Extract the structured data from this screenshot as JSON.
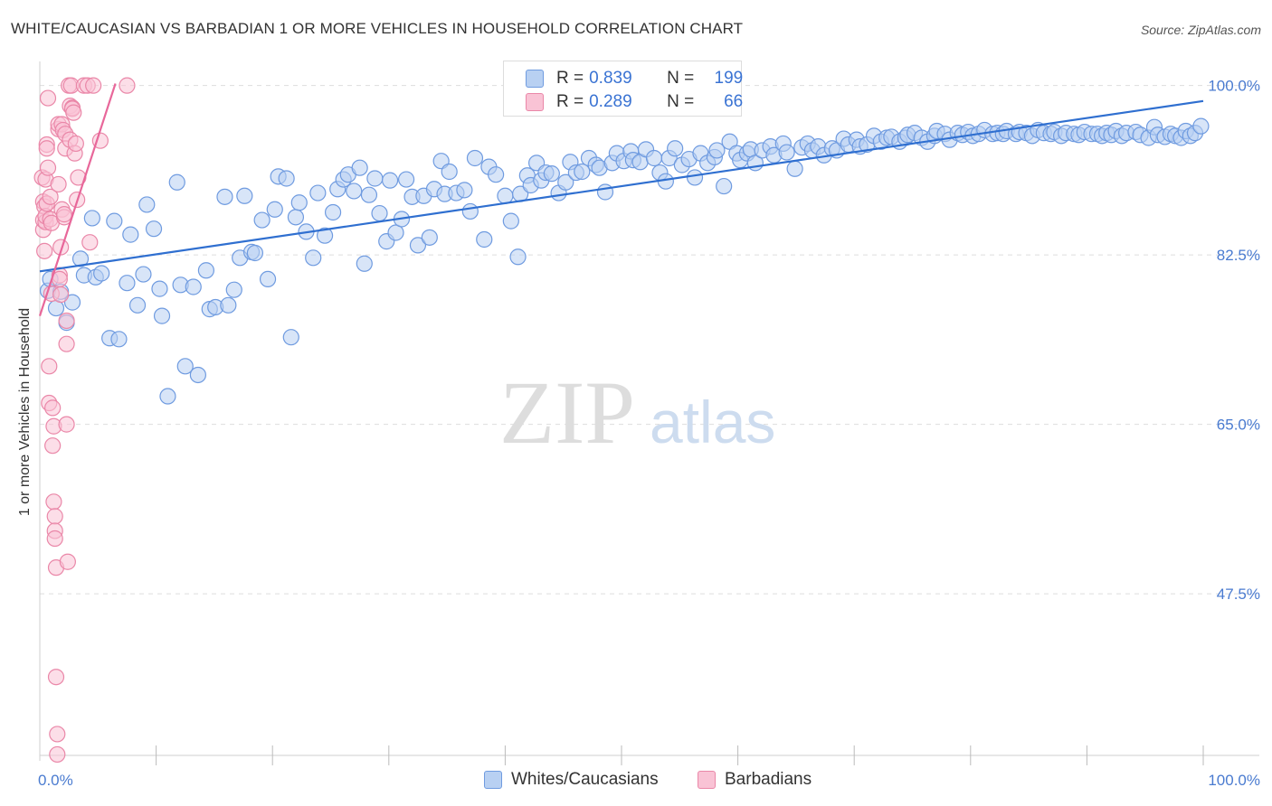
{
  "title": "WHITE/CAUCASIAN VS BARBADIAN 1 OR MORE VEHICLES IN HOUSEHOLD CORRELATION CHART",
  "source": "Source: ZipAtlas.com",
  "watermark": {
    "zip": "ZIP",
    "atlas": "atlas"
  },
  "legend": {
    "r_label": "R =",
    "n_label": "N =",
    "series": [
      {
        "name": "Whites/Caucasians",
        "r": "0.839",
        "n": "199",
        "color": "#6f9be0"
      },
      {
        "name": "Barbadians",
        "r": "0.289",
        "n": "66",
        "color": "#ea87a8"
      }
    ]
  },
  "colors": {
    "blue_fill": "#b8d0f2",
    "blue_stroke": "#6f9be0",
    "blue_line": "#2f6fd0",
    "pink_fill": "#f9c3d5",
    "pink_stroke": "#ea87a8",
    "pink_line": "#e8679a",
    "tick_text": "#4a7bd0"
  },
  "chart_data": {
    "type": "scatter",
    "title": "WHITE/CAUCASIAN VS BARBADIAN 1 OR MORE VEHICLES IN HOUSEHOLD CORRELATION CHART",
    "xlabel": "",
    "ylabel": "1 or more Vehicles in Household",
    "xlim": [
      0,
      100
    ],
    "ylim": [
      30.8,
      102.3
    ],
    "x_tick_labels": [
      {
        "value": 0,
        "label": "0.0%"
      },
      {
        "value": 100,
        "label": "100.0%"
      }
    ],
    "y_tick_labels": [
      {
        "value": 100,
        "label": "100.0%"
      },
      {
        "value": 82.5,
        "label": "82.5%"
      },
      {
        "value": 65,
        "label": "65.0%"
      },
      {
        "value": 47.5,
        "label": "47.5%"
      }
    ],
    "x_minor_ticks": [
      10,
      20,
      30,
      40,
      50,
      60,
      70,
      80,
      90
    ],
    "grid": true,
    "legend_position": "bottom",
    "series": [
      {
        "name": "Whites/Caucasians",
        "trend": {
          "x": [
            0,
            100
          ],
          "y": [
            80.8,
            98.4
          ]
        },
        "points": [
          [
            0.7,
            78.8
          ],
          [
            0.9,
            80.0
          ],
          [
            1.4,
            77.0
          ],
          [
            1.8,
            78.7
          ],
          [
            2.3,
            75.5
          ],
          [
            2.8,
            77.6
          ],
          [
            3.5,
            82.1
          ],
          [
            3.8,
            80.4
          ],
          [
            4.5,
            86.3
          ],
          [
            4.8,
            80.2
          ],
          [
            5.3,
            80.6
          ],
          [
            6.0,
            73.9
          ],
          [
            6.4,
            86.0
          ],
          [
            6.8,
            73.8
          ],
          [
            7.5,
            79.6
          ],
          [
            7.8,
            84.6
          ],
          [
            8.4,
            77.3
          ],
          [
            8.9,
            80.5
          ],
          [
            9.2,
            87.7
          ],
          [
            9.8,
            85.2
          ],
          [
            10.3,
            79.0
          ],
          [
            10.5,
            76.2
          ],
          [
            11.0,
            67.9
          ],
          [
            11.8,
            90.0
          ],
          [
            12.1,
            79.4
          ],
          [
            12.5,
            71.0
          ],
          [
            13.2,
            79.2
          ],
          [
            13.6,
            70.1
          ],
          [
            14.3,
            80.9
          ],
          [
            14.6,
            76.9
          ],
          [
            15.1,
            77.1
          ],
          [
            15.9,
            88.5
          ],
          [
            16.2,
            77.3
          ],
          [
            16.7,
            78.9
          ],
          [
            17.2,
            82.2
          ],
          [
            17.6,
            88.6
          ],
          [
            18.2,
            82.8
          ],
          [
            18.5,
            82.7
          ],
          [
            19.1,
            86.1
          ],
          [
            19.6,
            80.0
          ],
          [
            20.2,
            87.2
          ],
          [
            20.5,
            90.6
          ],
          [
            21.2,
            90.4
          ],
          [
            21.6,
            74.0
          ],
          [
            22.0,
            86.4
          ],
          [
            22.3,
            87.9
          ],
          [
            22.9,
            84.9
          ],
          [
            23.5,
            82.2
          ],
          [
            23.9,
            88.9
          ],
          [
            24.5,
            84.5
          ],
          [
            25.2,
            86.9
          ],
          [
            25.6,
            89.3
          ],
          [
            26.1,
            90.3
          ],
          [
            26.5,
            90.8
          ],
          [
            27.0,
            89.1
          ],
          [
            27.5,
            91.5
          ],
          [
            27.9,
            81.6
          ],
          [
            28.3,
            88.7
          ],
          [
            28.8,
            90.4
          ],
          [
            29.2,
            86.8
          ],
          [
            29.8,
            83.9
          ],
          [
            30.1,
            90.2
          ],
          [
            30.6,
            84.8
          ],
          [
            31.1,
            86.2
          ],
          [
            31.5,
            90.3
          ],
          [
            32.0,
            88.5
          ],
          [
            32.5,
            83.5
          ],
          [
            33.0,
            88.6
          ],
          [
            33.5,
            84.3
          ],
          [
            33.9,
            89.3
          ],
          [
            34.5,
            92.2
          ],
          [
            34.8,
            88.8
          ],
          [
            35.2,
            91.1
          ],
          [
            35.8,
            88.9
          ],
          [
            36.5,
            89.2
          ],
          [
            37.0,
            87.0
          ],
          [
            37.4,
            92.5
          ],
          [
            38.2,
            84.1
          ],
          [
            38.6,
            91.6
          ],
          [
            39.2,
            90.8
          ],
          [
            40.0,
            88.6
          ],
          [
            40.5,
            86.0
          ],
          [
            41.1,
            82.3
          ],
          [
            41.3,
            88.8
          ],
          [
            41.9,
            90.7
          ],
          [
            42.2,
            89.7
          ],
          [
            42.7,
            92.0
          ],
          [
            43.1,
            90.2
          ],
          [
            43.5,
            91.0
          ],
          [
            44.0,
            90.9
          ],
          [
            44.6,
            88.9
          ],
          [
            45.2,
            90.0
          ],
          [
            45.6,
            92.1
          ],
          [
            46.1,
            91.0
          ],
          [
            46.6,
            91.1
          ],
          [
            47.2,
            92.5
          ],
          [
            47.8,
            91.8
          ],
          [
            48.1,
            91.5
          ],
          [
            48.6,
            89.0
          ],
          [
            49.2,
            92.0
          ],
          [
            49.6,
            93.0
          ],
          [
            50.2,
            92.2
          ],
          [
            50.8,
            93.2
          ],
          [
            51.0,
            92.3
          ],
          [
            51.6,
            92.1
          ],
          [
            52.1,
            93.4
          ],
          [
            52.8,
            92.5
          ],
          [
            53.3,
            91.0
          ],
          [
            53.8,
            90.1
          ],
          [
            54.1,
            92.5
          ],
          [
            54.6,
            93.5
          ],
          [
            55.2,
            91.8
          ],
          [
            55.8,
            92.4
          ],
          [
            56.3,
            90.5
          ],
          [
            56.8,
            93.0
          ],
          [
            57.4,
            92.0
          ],
          [
            58.0,
            92.6
          ],
          [
            58.2,
            93.3
          ],
          [
            58.8,
            89.6
          ],
          [
            59.3,
            94.2
          ],
          [
            59.9,
            93.0
          ],
          [
            60.2,
            92.3
          ],
          [
            60.8,
            93.0
          ],
          [
            61.1,
            93.4
          ],
          [
            61.5,
            92.0
          ],
          [
            62.1,
            93.3
          ],
          [
            62.8,
            93.7
          ],
          [
            63.1,
            92.8
          ],
          [
            63.9,
            94.0
          ],
          [
            64.2,
            93.1
          ],
          [
            64.9,
            91.4
          ],
          [
            65.5,
            93.6
          ],
          [
            66.0,
            94.0
          ],
          [
            66.4,
            93.3
          ],
          [
            66.9,
            93.7
          ],
          [
            67.4,
            92.8
          ],
          [
            68.1,
            93.5
          ],
          [
            68.5,
            93.3
          ],
          [
            69.1,
            94.5
          ],
          [
            69.5,
            93.9
          ],
          [
            70.2,
            94.4
          ],
          [
            70.5,
            93.7
          ],
          [
            71.1,
            93.9
          ],
          [
            71.7,
            94.8
          ],
          [
            72.3,
            94.2
          ],
          [
            72.8,
            94.6
          ],
          [
            73.2,
            94.7
          ],
          [
            73.9,
            94.2
          ],
          [
            74.4,
            94.6
          ],
          [
            74.6,
            94.9
          ],
          [
            75.2,
            95.1
          ],
          [
            75.8,
            94.6
          ],
          [
            76.3,
            94.2
          ],
          [
            76.9,
            94.8
          ],
          [
            77.1,
            95.3
          ],
          [
            77.8,
            95.0
          ],
          [
            78.2,
            94.4
          ],
          [
            78.9,
            95.1
          ],
          [
            79.3,
            94.9
          ],
          [
            79.8,
            95.2
          ],
          [
            80.2,
            94.8
          ],
          [
            80.7,
            95.0
          ],
          [
            81.2,
            95.4
          ],
          [
            81.9,
            95.0
          ],
          [
            82.3,
            95.1
          ],
          [
            82.8,
            95.0
          ],
          [
            83.1,
            95.3
          ],
          [
            83.9,
            95.0
          ],
          [
            84.2,
            95.2
          ],
          [
            84.8,
            95.1
          ],
          [
            85.3,
            94.8
          ],
          [
            85.8,
            95.4
          ],
          [
            86.3,
            95.1
          ],
          [
            86.9,
            95.0
          ],
          [
            87.2,
            95.2
          ],
          [
            87.8,
            94.8
          ],
          [
            88.2,
            95.1
          ],
          [
            88.9,
            95.0
          ],
          [
            89.3,
            94.9
          ],
          [
            89.8,
            95.2
          ],
          [
            90.4,
            95.0
          ],
          [
            90.9,
            95.0
          ],
          [
            91.3,
            94.8
          ],
          [
            91.7,
            95.1
          ],
          [
            92.1,
            94.9
          ],
          [
            92.5,
            95.3
          ],
          [
            93.0,
            94.8
          ],
          [
            93.4,
            95.1
          ],
          [
            94.2,
            95.2
          ],
          [
            94.6,
            94.9
          ],
          [
            95.3,
            94.6
          ],
          [
            95.8,
            95.7
          ],
          [
            96.1,
            94.9
          ],
          [
            96.7,
            94.7
          ],
          [
            97.2,
            95.0
          ],
          [
            97.6,
            94.8
          ],
          [
            98.1,
            94.6
          ],
          [
            98.5,
            95.3
          ],
          [
            98.9,
            94.8
          ],
          [
            99.3,
            95.1
          ],
          [
            99.8,
            95.8
          ]
        ]
      },
      {
        "name": "Barbadians",
        "trend": {
          "x": [
            0,
            6.5
          ],
          "y": [
            76.2,
            100.2
          ]
        },
        "points": [
          [
            0.2,
            90.5
          ],
          [
            0.3,
            85.1
          ],
          [
            0.3,
            88.0
          ],
          [
            0.3,
            86.1
          ],
          [
            0.4,
            87.5
          ],
          [
            0.4,
            82.9
          ],
          [
            0.5,
            90.3
          ],
          [
            0.5,
            85.9
          ],
          [
            0.5,
            86.5
          ],
          [
            0.6,
            93.9
          ],
          [
            0.6,
            93.5
          ],
          [
            0.6,
            87.8
          ],
          [
            0.7,
            91.5
          ],
          [
            0.7,
            98.7
          ],
          [
            0.8,
            71.0
          ],
          [
            0.8,
            67.2
          ],
          [
            0.9,
            88.5
          ],
          [
            0.9,
            86.2
          ],
          [
            1.0,
            85.8
          ],
          [
            1.0,
            78.5
          ],
          [
            1.1,
            66.7
          ],
          [
            1.1,
            62.8
          ],
          [
            1.2,
            64.8
          ],
          [
            1.2,
            57.0
          ],
          [
            1.3,
            55.5
          ],
          [
            1.3,
            54.0
          ],
          [
            1.3,
            53.2
          ],
          [
            1.4,
            50.2
          ],
          [
            1.4,
            38.9
          ],
          [
            1.5,
            33.0
          ],
          [
            1.5,
            30.9
          ],
          [
            1.6,
            95.5
          ],
          [
            1.6,
            96.0
          ],
          [
            1.6,
            89.8
          ],
          [
            1.7,
            80.4
          ],
          [
            1.7,
            80.0
          ],
          [
            1.8,
            78.4
          ],
          [
            1.8,
            83.3
          ],
          [
            1.9,
            87.2
          ],
          [
            1.9,
            96.0
          ],
          [
            2.0,
            95.4
          ],
          [
            2.1,
            86.4
          ],
          [
            2.1,
            86.7
          ],
          [
            2.2,
            95.0
          ],
          [
            2.2,
            93.5
          ],
          [
            2.3,
            75.7
          ],
          [
            2.3,
            73.3
          ],
          [
            2.3,
            65.0
          ],
          [
            2.4,
            50.8
          ],
          [
            2.5,
            100.0
          ],
          [
            2.6,
            97.9
          ],
          [
            2.6,
            94.4
          ],
          [
            2.7,
            100.0
          ],
          [
            2.8,
            97.7
          ],
          [
            2.8,
            97.6
          ],
          [
            2.9,
            97.2
          ],
          [
            3.0,
            93.0
          ],
          [
            3.1,
            94.0
          ],
          [
            3.2,
            88.2
          ],
          [
            3.3,
            90.5
          ],
          [
            3.8,
            100.0
          ],
          [
            4.1,
            100.0
          ],
          [
            4.3,
            83.8
          ],
          [
            4.6,
            100.0
          ],
          [
            5.2,
            94.3
          ],
          [
            7.5,
            100.0
          ]
        ]
      }
    ]
  }
}
